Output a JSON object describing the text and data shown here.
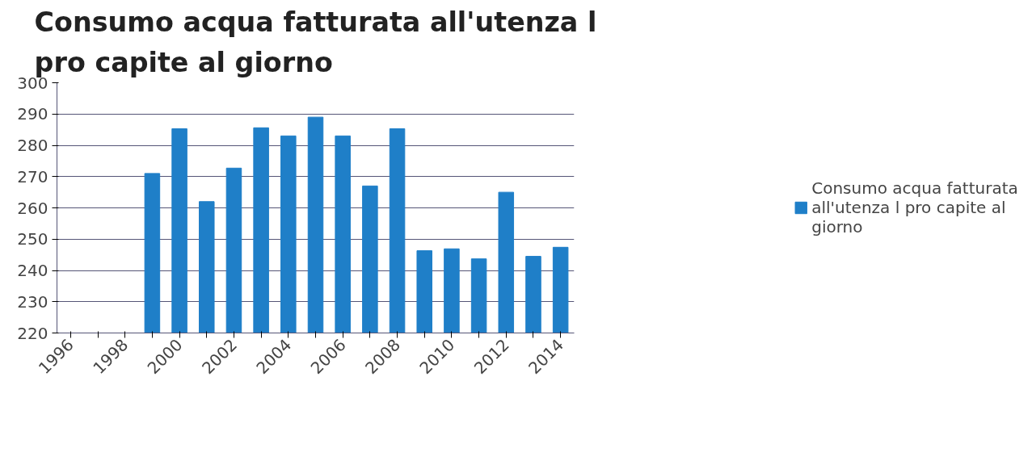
{
  "chart_data": {
    "type": "bar",
    "title": "Consumo acqua fatturata all'utenza l pro capite al giorno",
    "categories": [
      "1996",
      null,
      "1998",
      null,
      "2000",
      null,
      "2002",
      null,
      "2004",
      null,
      "2006",
      null,
      "2008",
      null,
      "2010",
      null,
      "2012",
      null,
      "2014"
    ],
    "series": [
      {
        "name": "Consumo acqua fatturata all'utenza l pro capite al giorno",
        "color": "#1f7fc8",
        "values": [
          null,
          null,
          null,
          271,
          285.3,
          262,
          272.7,
          285.6,
          283,
          289,
          283,
          267,
          285.3,
          246.3,
          246.9,
          243.7,
          265,
          244.5,
          247.4
        ]
      }
    ],
    "ylim": [
      220,
      300
    ],
    "yticks": [
      220,
      230,
      240,
      250,
      260,
      270,
      280,
      290,
      300
    ],
    "grid": "y",
    "legend": "right"
  }
}
